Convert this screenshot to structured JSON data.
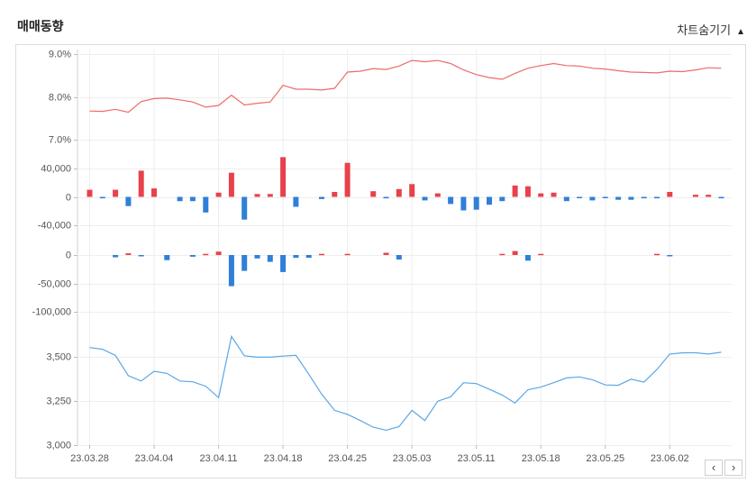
{
  "header": {
    "title": "매매동향",
    "toggle_label": "차트숨기기",
    "toggle_icon": "triangle-up-icon"
  },
  "pager": {
    "prev_icon": "chevron-left-icon",
    "next_icon": "chevron-right-icon",
    "prev_label": "‹",
    "next_label": "›"
  },
  "colors": {
    "ratio_line": "#f06a6a",
    "positive_bar": "#e8414c",
    "negative_bar": "#2f7fd9",
    "price_line": "#5aa7e8",
    "grid": "#eeeeee"
  },
  "chart_data": [
    {
      "type": "line",
      "panel": "ratio",
      "ylim": [
        7.0,
        9.0
      ],
      "ytick_labels": [
        "9.0%",
        "8.0%",
        "7.0%"
      ],
      "yticks": [
        9.0,
        8.0,
        7.0
      ],
      "series": [
        {
          "values": [
            7.67,
            7.66,
            7.71,
            7.64,
            7.89,
            7.96,
            7.97,
            7.93,
            7.88,
            7.76,
            7.8,
            8.04,
            7.81,
            7.85,
            7.88,
            8.27,
            8.18,
            8.18,
            8.16,
            8.2,
            8.58,
            8.6,
            8.66,
            8.64,
            8.72,
            8.85,
            8.82,
            8.85,
            8.78,
            8.63,
            8.52,
            8.45,
            8.41,
            8.55,
            8.67,
            8.73,
            8.78,
            8.73,
            8.72,
            8.67,
            8.65,
            8.61,
            8.58,
            8.57,
            8.56,
            8.6,
            8.59,
            8.63,
            8.68,
            8.67
          ]
        }
      ]
    },
    {
      "type": "bar",
      "panel": "institution",
      "ylim": [
        -40000,
        40000
      ],
      "ytick_labels": [
        "40,000",
        "0",
        "-40,000"
      ],
      "yticks": [
        40000,
        0,
        -40000
      ],
      "series": [
        {
          "values": [
            10000,
            -2000,
            10000,
            -13000,
            37000,
            12000,
            0,
            -6000,
            -6000,
            -22000,
            6000,
            34000,
            -32000,
            4000,
            4000,
            56000,
            -14000,
            0,
            -3000,
            7000,
            48000,
            0,
            8000,
            -2000,
            11000,
            18000,
            -5000,
            5000,
            -10000,
            -19000,
            -18000,
            -11000,
            -6000,
            16000,
            15000,
            5000,
            6000,
            -6000,
            -1000,
            -5000,
            -1500,
            -4000,
            -4000,
            -2000,
            -2000,
            7000,
            0,
            3000,
            3000,
            -2000
          ]
        }
      ]
    },
    {
      "type": "bar",
      "panel": "foreign",
      "ylim": [
        -100000,
        0
      ],
      "ytick_labels": [
        "0",
        "-50,000",
        "-100,000"
      ],
      "yticks": [
        0,
        -50000,
        -100000
      ],
      "series": [
        {
          "values": [
            0,
            0,
            -4000,
            3000,
            -2000,
            0,
            -9000,
            0,
            -3000,
            2000,
            6000,
            -55000,
            -28000,
            -6000,
            -12000,
            -30000,
            -5000,
            -5000,
            2000,
            0,
            2000,
            0,
            0,
            4000,
            -8000,
            0,
            0,
            0,
            0,
            0,
            0,
            0,
            2000,
            7000,
            -10000,
            2000,
            0,
            0,
            0,
            0,
            0,
            0,
            0,
            0,
            2000,
            -2000,
            0,
            0,
            0,
            0
          ]
        }
      ]
    },
    {
      "type": "line",
      "panel": "price",
      "ylim": [
        3000,
        3625
      ],
      "ytick_labels": [
        "3,500",
        "3,250",
        "3,000"
      ],
      "yticks": [
        3500,
        3250,
        3000
      ],
      "xtick_labels": [
        "23.03.28",
        "23.04.04",
        "23.04.11",
        "23.04.18",
        "23.04.25",
        "23.05.03",
        "23.05.11",
        "23.05.18",
        "23.05.25",
        "23.06.02"
      ],
      "series": [
        {
          "values": [
            3555,
            3545,
            3510,
            3395,
            3365,
            3420,
            3408,
            3365,
            3360,
            3335,
            3270,
            3618,
            3508,
            3500,
            3500,
            3506,
            3511,
            3403,
            3290,
            3198,
            3175,
            3140,
            3102,
            3085,
            3105,
            3198,
            3140,
            3250,
            3275,
            3355,
            3350,
            3318,
            3285,
            3240,
            3315,
            3330,
            3355,
            3382,
            3388,
            3372,
            3342,
            3340,
            3375,
            3358,
            3430,
            3518,
            3525,
            3525,
            3518,
            3528
          ]
        }
      ]
    }
  ]
}
